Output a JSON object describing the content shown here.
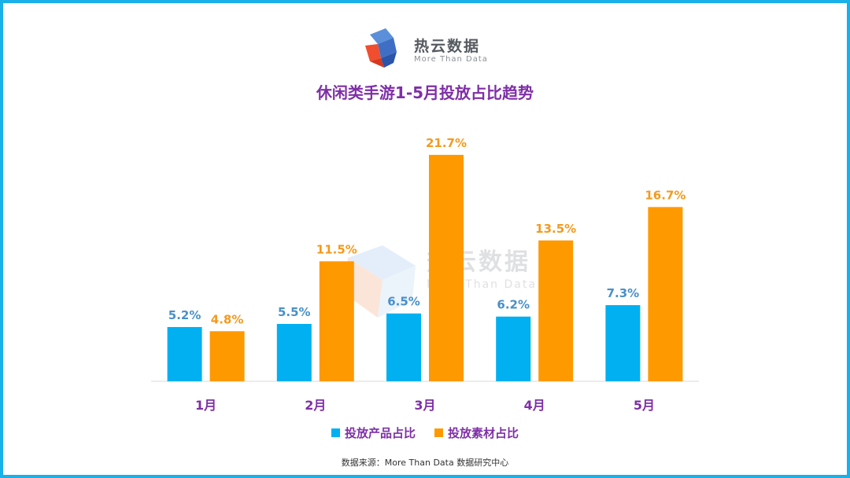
{
  "logo": {
    "name_cn": "热云数据",
    "name_en": "More Than Data"
  },
  "watermark": {
    "name_cn": "热云数据",
    "name_en": "More Than Data"
  },
  "colors": {
    "border": "#1ab0e8",
    "title": "#7e2fa6",
    "series1": "#00b0f0",
    "series2": "#ff9900",
    "label1": "#4a90c8",
    "label2": "#f39a1e"
  },
  "legend": {
    "product": "投放产品占比",
    "material": "投放素材占比"
  },
  "source": "数据来源：More Than Data 数据研究中心",
  "chart_data": {
    "type": "bar",
    "title": "休闲类手游1-5月投放占比趋势",
    "categories": [
      "1月",
      "2月",
      "3月",
      "4月",
      "5月"
    ],
    "series": [
      {
        "name": "投放产品占比",
        "values": [
          5.2,
          5.5,
          6.5,
          6.2,
          7.3
        ],
        "labels": [
          "5.2%",
          "5.5%",
          "6.5%",
          "6.2%",
          "7.3%"
        ]
      },
      {
        "name": "投放素材占比",
        "values": [
          4.8,
          11.5,
          21.7,
          13.5,
          16.7
        ],
        "labels": [
          "4.8%",
          "11.5%",
          "21.7%",
          "13.5%",
          "16.7%"
        ]
      }
    ],
    "ylim": [
      0,
      22
    ],
    "grid": false,
    "legend_position": "bottom"
  }
}
